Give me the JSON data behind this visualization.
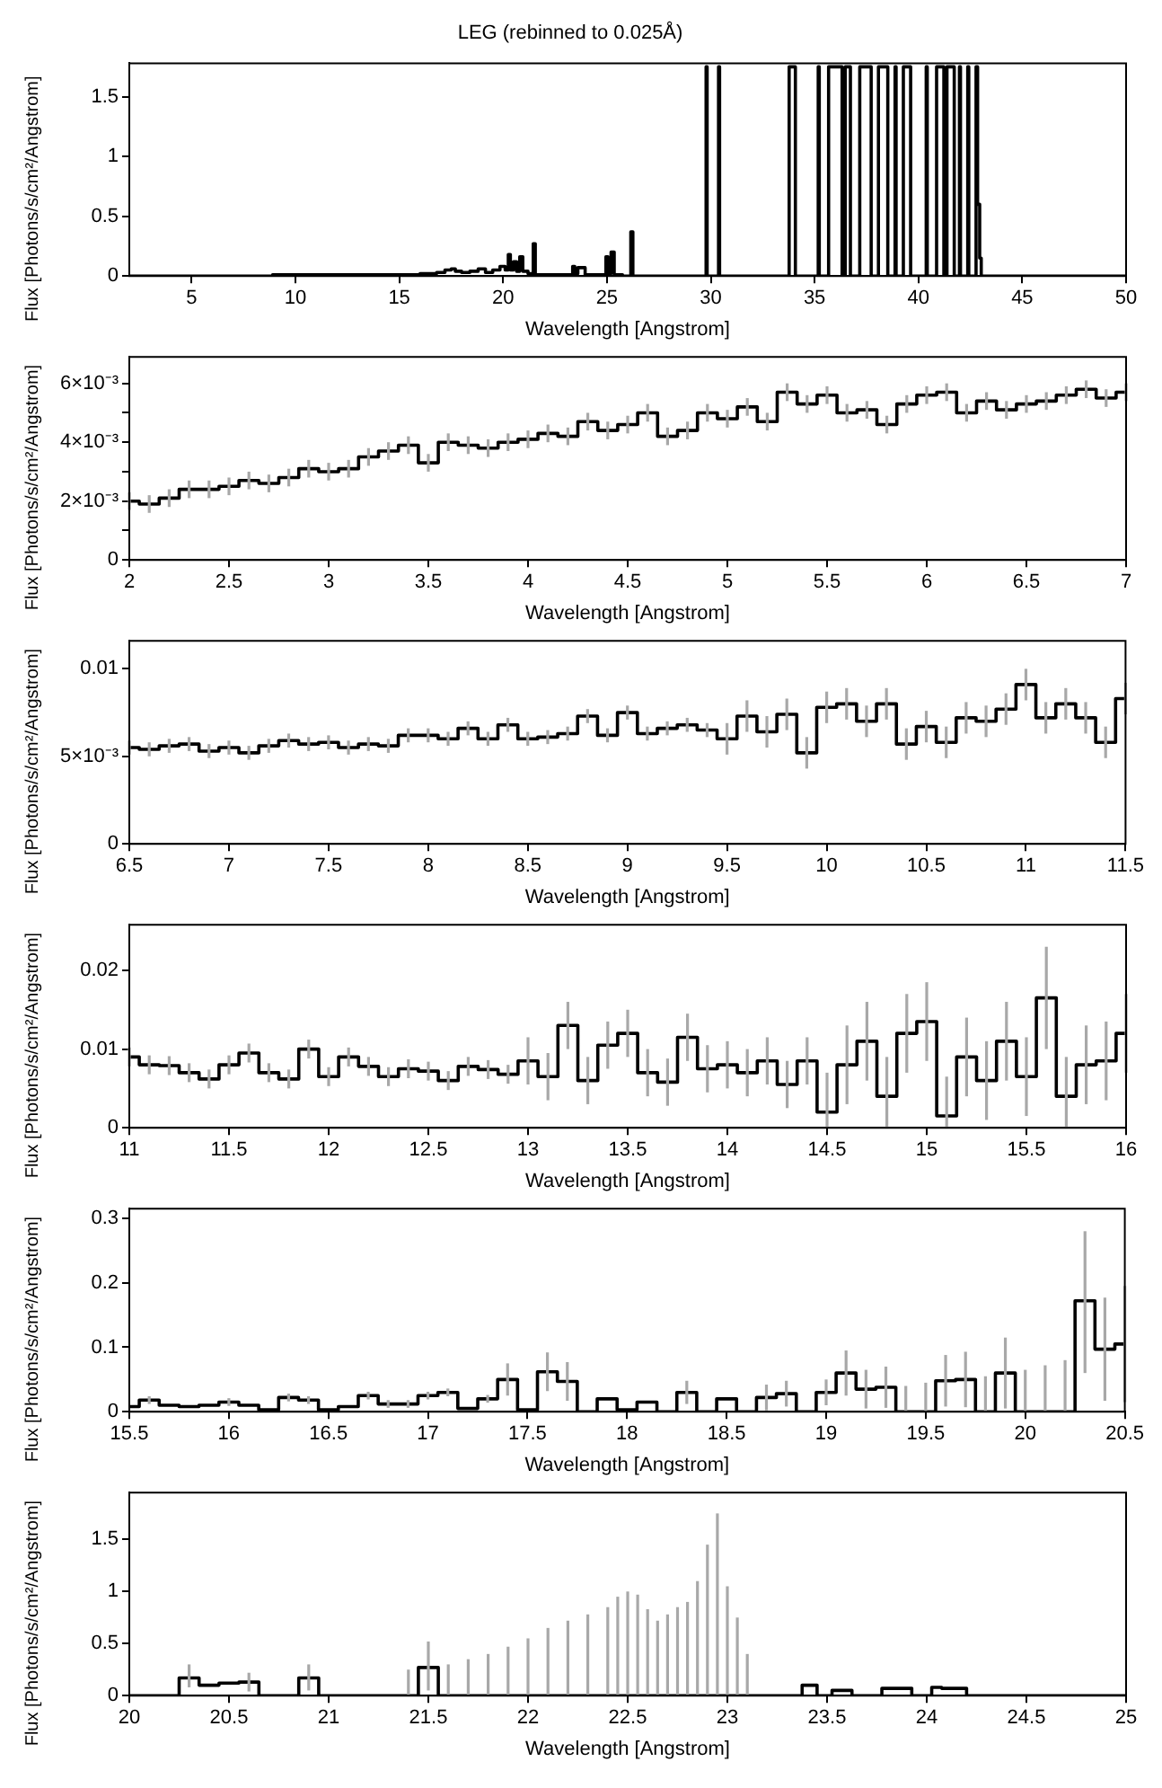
{
  "chart_data": [
    {
      "type": "step",
      "title": "LEG (rebinned to 0.025Å)",
      "xlabel": "Wavelength [Angstrom]",
      "ylabel": "Flux [Photons/s/cm²/Angstrom]",
      "color": "#000000",
      "xlim": [
        2,
        50
      ],
      "ylim": [
        0,
        1.78
      ],
      "xticks": [
        5,
        10,
        15,
        20,
        25,
        30,
        35,
        40,
        45,
        50
      ],
      "yticks": [
        0,
        0.5,
        1,
        1.5
      ],
      "x": [
        2,
        15.8,
        16.2,
        16.6,
        17.0,
        17.4,
        17.6,
        17.8,
        18.2,
        18.6,
        19.0,
        19.3,
        19.7,
        20.0,
        20.2,
        20.3,
        20.4,
        20.6,
        20.7,
        20.9,
        21.0,
        21.4,
        21.5,
        21.6,
        23.3,
        23.4,
        23.5,
        23.7,
        23.9,
        24.0,
        24.9,
        25.0,
        25.1,
        25.3,
        25.4,
        26.1,
        26.2,
        26.3,
        29.75,
        29.8,
        29.85,
        30.35,
        30.4,
        30.45,
        33.75,
        33.8,
        34.05,
        34.1,
        35.15,
        35.2,
        35.25,
        35.65,
        35.7,
        36.3,
        36.35,
        36.45,
        36.5,
        36.7,
        36.75,
        37.15,
        37.2,
        37.7,
        37.75,
        38.05,
        38.1,
        38.5,
        38.55,
        38.85,
        38.9,
        38.95,
        39.25,
        39.3,
        39.6,
        39.65,
        40.35,
        40.4,
        40.45,
        40.85,
        40.9,
        41.2,
        41.25,
        41.35,
        41.4,
        41.7,
        41.75,
        41.95,
        42.0,
        42.05,
        42.35,
        42.4,
        42.45,
        42.75,
        42.8,
        42.9,
        43.0,
        43.05,
        50
      ],
      "values": [
        0,
        0.01,
        0.02,
        0.02,
        0.03,
        0.05,
        0.06,
        0.04,
        0.03,
        0.04,
        0.06,
        0.03,
        0.05,
        0.08,
        0.05,
        0.18,
        0.05,
        0.12,
        0.04,
        0.16,
        0.04,
        0.02,
        0.27,
        0.01,
        0.01,
        0.08,
        0.02,
        0.07,
        0.07,
        0.01,
        0.01,
        0.16,
        0.02,
        0.2,
        0.01,
        0,
        0.37,
        0,
        0,
        1.75,
        0,
        0,
        1.75,
        0,
        0,
        1.75,
        1.75,
        0,
        0,
        1.75,
        0,
        0,
        1.75,
        1.75,
        0,
        0,
        1.75,
        1.75,
        0,
        0,
        1.75,
        1.75,
        0,
        0,
        1.75,
        1.75,
        0,
        0,
        1.75,
        0,
        0,
        1.75,
        1.75,
        0,
        0,
        1.75,
        0,
        0,
        1.75,
        1.75,
        0,
        0,
        1.75,
        1.75,
        0,
        0,
        1.75,
        0,
        0,
        1.75,
        0,
        0,
        1.75,
        0.6,
        0.15,
        0,
        0
      ]
    },
    {
      "type": "step",
      "xlabel": "Wavelength [Angstrom]",
      "ylabel": "Flux [Photons/s/cm²/Angstrom]",
      "color": "#000000",
      "xlim": [
        2,
        7
      ],
      "ylim": [
        0,
        0.0069
      ],
      "xticks": [
        2,
        2.5,
        3,
        3.5,
        4,
        4.5,
        5,
        5.5,
        6,
        6.5,
        7
      ],
      "yticks": [
        0,
        {
          "value": 0.001,
          "label": null
        },
        {
          "value": 0.002,
          "label": "2×10⁻³"
        },
        {
          "value": 0.003,
          "label": null
        },
        {
          "value": 0.004,
          "label": "4×10⁻³"
        },
        {
          "value": 0.005,
          "label": null
        },
        {
          "value": 0.006,
          "label": "6×10⁻³"
        }
      ],
      "x": [
        2,
        2.1,
        2.2,
        2.3,
        2.4,
        2.5,
        2.6,
        2.7,
        2.8,
        2.9,
        3,
        3.1,
        3.2,
        3.3,
        3.4,
        3.5,
        3.6,
        3.7,
        3.8,
        3.9,
        4,
        4.1,
        4.2,
        4.3,
        4.4,
        4.5,
        4.6,
        4.7,
        4.8,
        4.9,
        5,
        5.1,
        5.2,
        5.3,
        5.4,
        5.5,
        5.6,
        5.7,
        5.8,
        5.9,
        6,
        6.1,
        6.2,
        6.3,
        6.4,
        6.5,
        6.6,
        6.7,
        6.8,
        6.9,
        7
      ],
      "values": [
        0.002,
        0.0019,
        0.0021,
        0.0024,
        0.0024,
        0.0025,
        0.0027,
        0.0026,
        0.0028,
        0.0031,
        0.003,
        0.0031,
        0.0035,
        0.0037,
        0.0039,
        0.0033,
        0.004,
        0.0039,
        0.0038,
        0.004,
        0.0041,
        0.0043,
        0.0042,
        0.0047,
        0.0044,
        0.0046,
        0.005,
        0.0042,
        0.0044,
        0.005,
        0.0048,
        0.0052,
        0.0047,
        0.0057,
        0.0053,
        0.0056,
        0.005,
        0.0051,
        0.0046,
        0.0053,
        0.0056,
        0.0057,
        0.005,
        0.0054,
        0.0051,
        0.0053,
        0.0054,
        0.0056,
        0.0058,
        0.0055,
        0.0057
      ],
      "errors": [
        0.0003,
        0.0003,
        0.0003,
        0.0003,
        0.0003,
        0.0003,
        0.0003,
        0.0003,
        0.0003,
        0.0003,
        0.0003,
        0.0003,
        0.0003,
        0.0003,
        0.0003,
        0.0003,
        0.0003,
        0.0003,
        0.0003,
        0.0003,
        0.0003,
        0.0003,
        0.0003,
        0.0003,
        0.0003,
        0.0003,
        0.0003,
        0.0003,
        0.0003,
        0.0003,
        0.0003,
        0.0003,
        0.0003,
        0.0003,
        0.0003,
        0.0003,
        0.0003,
        0.0003,
        0.0003,
        0.0003,
        0.0003,
        0.0003,
        0.0003,
        0.0003,
        0.0003,
        0.0003,
        0.0003,
        0.0003,
        0.0003,
        0.0003,
        0.0003
      ]
    },
    {
      "type": "step",
      "xlabel": "Wavelength [Angstrom]",
      "ylabel": "Flux [Photons/s/cm²/Angstrom]",
      "color": "#000000",
      "xlim": [
        6.5,
        11.5
      ],
      "ylim": [
        0,
        0.0116
      ],
      "xticks": [
        6.5,
        7,
        7.5,
        8,
        8.5,
        9,
        9.5,
        10,
        10.5,
        11,
        11.5
      ],
      "yticks": [
        0,
        {
          "value": 0.005,
          "label": "5×10⁻³"
        },
        0.01
      ],
      "x": [
        6.5,
        6.6,
        6.7,
        6.8,
        6.9,
        7,
        7.1,
        7.2,
        7.3,
        7.4,
        7.5,
        7.6,
        7.7,
        7.8,
        7.9,
        8,
        8.1,
        8.2,
        8.3,
        8.4,
        8.5,
        8.6,
        8.7,
        8.8,
        8.9,
        9,
        9.1,
        9.2,
        9.3,
        9.4,
        9.5,
        9.6,
        9.7,
        9.8,
        9.9,
        10,
        10.1,
        10.2,
        10.3,
        10.4,
        10.5,
        10.6,
        10.7,
        10.8,
        10.9,
        11,
        11.1,
        11.2,
        11.3,
        11.4,
        11.5
      ],
      "values": [
        0.0055,
        0.0054,
        0.0056,
        0.0057,
        0.0053,
        0.0055,
        0.0052,
        0.0056,
        0.0059,
        0.0057,
        0.0058,
        0.0055,
        0.0057,
        0.0056,
        0.0062,
        0.0062,
        0.006,
        0.0066,
        0.006,
        0.0068,
        0.006,
        0.0061,
        0.0063,
        0.0073,
        0.0062,
        0.0075,
        0.0063,
        0.0066,
        0.0068,
        0.0065,
        0.006,
        0.0073,
        0.0064,
        0.0074,
        0.0052,
        0.0078,
        0.008,
        0.007,
        0.008,
        0.0057,
        0.0067,
        0.0058,
        0.0072,
        0.007,
        0.0077,
        0.0091,
        0.0072,
        0.008,
        0.0072,
        0.0058,
        0.0083
      ],
      "errors": [
        0.0004,
        0.0004,
        0.0004,
        0.0004,
        0.0004,
        0.0004,
        0.0004,
        0.0004,
        0.0004,
        0.0004,
        0.0004,
        0.0004,
        0.0004,
        0.0004,
        0.0004,
        0.0004,
        0.0004,
        0.0004,
        0.0004,
        0.0004,
        0.0004,
        0.0004,
        0.0004,
        0.0004,
        0.0004,
        0.0004,
        0.0004,
        0.0004,
        0.0004,
        0.0004,
        0.0009,
        0.0009,
        0.0009,
        0.0009,
        0.0009,
        0.0009,
        0.0009,
        0.0009,
        0.0009,
        0.0009,
        0.0009,
        0.0009,
        0.0009,
        0.0009,
        0.0009,
        0.0009,
        0.0009,
        0.0009,
        0.0009,
        0.0009,
        0.0009
      ]
    },
    {
      "type": "step",
      "xlabel": "Wavelength [Angstrom]",
      "ylabel": "Flux [Photons/s/cm²/Angstrom]",
      "color": "#000000",
      "xlim": [
        11,
        16
      ],
      "ylim": [
        0,
        0.0258
      ],
      "xticks": [
        11,
        11.5,
        12,
        12.5,
        13,
        13.5,
        14,
        14.5,
        15,
        15.5,
        16
      ],
      "yticks": [
        0,
        0.01,
        0.02
      ],
      "x": [
        11,
        11.1,
        11.2,
        11.3,
        11.4,
        11.5,
        11.6,
        11.7,
        11.8,
        11.9,
        12,
        12.1,
        12.2,
        12.3,
        12.4,
        12.5,
        12.6,
        12.7,
        12.8,
        12.9,
        13,
        13.1,
        13.2,
        13.3,
        13.4,
        13.5,
        13.6,
        13.7,
        13.8,
        13.9,
        14,
        14.1,
        14.2,
        14.3,
        14.4,
        14.5,
        14.6,
        14.7,
        14.8,
        14.9,
        15,
        15.1,
        15.2,
        15.3,
        15.4,
        15.5,
        15.6,
        15.7,
        15.8,
        15.9,
        16
      ],
      "values": [
        0.009,
        0.008,
        0.0079,
        0.007,
        0.0062,
        0.008,
        0.0095,
        0.007,
        0.0062,
        0.01,
        0.0065,
        0.009,
        0.0078,
        0.0065,
        0.0075,
        0.0072,
        0.006,
        0.0078,
        0.0074,
        0.0068,
        0.0085,
        0.0065,
        0.013,
        0.006,
        0.0105,
        0.012,
        0.007,
        0.0058,
        0.0115,
        0.0075,
        0.008,
        0.007,
        0.0085,
        0.0055,
        0.0085,
        0.002,
        0.008,
        0.011,
        0.004,
        0.012,
        0.0135,
        0.0015,
        0.009,
        0.006,
        0.011,
        0.0065,
        0.0165,
        0.004,
        0.008,
        0.0085,
        0.012
      ],
      "errors": [
        0.0012,
        0.0012,
        0.0012,
        0.0012,
        0.0012,
        0.0012,
        0.0012,
        0.0012,
        0.0012,
        0.0012,
        0.0012,
        0.0012,
        0.0012,
        0.0012,
        0.0012,
        0.0012,
        0.0012,
        0.0012,
        0.0012,
        0.0012,
        0.003,
        0.003,
        0.003,
        0.003,
        0.003,
        0.003,
        0.003,
        0.003,
        0.003,
        0.003,
        0.003,
        0.003,
        0.003,
        0.003,
        0.003,
        [
          0,
          0.007
        ],
        0.005,
        0.005,
        [
          0,
          0.009
        ],
        0.005,
        0.005,
        [
          0,
          0.0065
        ],
        0.005,
        0.005,
        0.005,
        0.005,
        0.0065,
        [
          0,
          0.009
        ],
        0.005,
        0.005,
        0.005
      ]
    },
    {
      "type": "step",
      "xlabel": "Wavelength [Angstrom]",
      "ylabel": "Flux [Photons/s/cm²/Angstrom]",
      "color": "#000000",
      "xlim": [
        15.5,
        20.5
      ],
      "ylim": [
        0,
        0.315
      ],
      "xticks": [
        15.5,
        16,
        16.5,
        17,
        17.5,
        18,
        18.5,
        19,
        19.5,
        20,
        20.5
      ],
      "yticks": [
        0,
        0.1,
        0.2,
        0.3
      ],
      "x": [
        15.5,
        15.6,
        15.7,
        15.8,
        15.9,
        16,
        16.1,
        16.2,
        16.3,
        16.4,
        16.5,
        16.6,
        16.7,
        16.8,
        16.9,
        17,
        17.1,
        17.2,
        17.3,
        17.4,
        17.5,
        17.6,
        17.7,
        17.8,
        17.9,
        18,
        18.1,
        18.2,
        18.3,
        18.4,
        18.5,
        18.6,
        18.7,
        18.8,
        18.9,
        19,
        19.1,
        19.2,
        19.3,
        19.4,
        19.5,
        19.6,
        19.7,
        19.8,
        19.9,
        20,
        20.1,
        20.2,
        20.3,
        20.4,
        20.5
      ],
      "values": [
        0.008,
        0.018,
        0.01,
        0.008,
        0.01,
        0.015,
        0.01,
        0.003,
        0.022,
        0.018,
        0.003,
        0.008,
        0.025,
        0.012,
        0.012,
        0.025,
        0.03,
        0.005,
        0.02,
        0.05,
        0.003,
        0.062,
        0.047,
        0,
        0.02,
        0.003,
        0.015,
        0,
        0.03,
        0,
        0.02,
        0,
        0.022,
        0.028,
        0,
        0.03,
        0.06,
        0.035,
        0.038,
        0,
        0,
        0.048,
        0.05,
        0,
        0.06,
        0,
        0,
        0,
        0.172,
        0.097,
        0.105
      ],
      "errors": [
        null,
        0.006,
        null,
        null,
        null,
        0.006,
        null,
        null,
        0.006,
        0.006,
        null,
        null,
        0.006,
        0.006,
        0.006,
        0.006,
        0.006,
        null,
        0.006,
        0.025,
        null,
        0.03,
        0.03,
        null,
        null,
        null,
        null,
        null,
        0.018,
        null,
        null,
        null,
        0.02,
        0.02,
        null,
        0.02,
        0.035,
        0.03,
        0.032,
        [
          0,
          0.04
        ],
        [
          0,
          0.045
        ],
        0.04,
        0.043,
        [
          0,
          0.055
        ],
        0.055,
        [
          0,
          0.065
        ],
        [
          0,
          0.072
        ],
        [
          0,
          0.08
        ],
        [
          0.06,
          0.28
        ],
        0.08,
        0.09
      ]
    },
    {
      "type": "step",
      "xlabel": "Wavelength [Angstrom]",
      "ylabel": "Flux [Photons/s/cm²/Angstrom]",
      "color": "#000000",
      "xlim": [
        20,
        25
      ],
      "ylim": [
        0,
        1.95
      ],
      "xticks": [
        20,
        20.5,
        21,
        21.5,
        22,
        22.5,
        23,
        23.5,
        24,
        24.5,
        25
      ],
      "yticks": [
        0,
        0.5,
        1,
        1.5
      ],
      "x": [
        20,
        20.1,
        20.2,
        20.3,
        20.4,
        20.5,
        20.6,
        20.7,
        20.8,
        20.9,
        21,
        21.1,
        21.2,
        21.3,
        21.4,
        21.5,
        21.6,
        21.7,
        21.8,
        21.9,
        22,
        22.1,
        22.2,
        22.3,
        22.4,
        22.45,
        22.5,
        22.55,
        22.6,
        22.65,
        22.7,
        22.75,
        22.8,
        22.85,
        22.9,
        22.95,
        23,
        23.05,
        23.1,
        23.15,
        23.2,
        23.3,
        23.35,
        23.4,
        23.5,
        23.55,
        23.7,
        23.85,
        24,
        24.05,
        24.1,
        24.3,
        24.5,
        24.7,
        25
      ],
      "values": [
        0,
        0,
        0,
        0.17,
        0.1,
        0.12,
        0.13,
        0,
        0,
        0.17,
        0,
        0,
        0,
        0,
        0,
        0.27,
        0,
        0,
        0,
        0,
        0,
        0,
        0,
        0,
        0,
        0,
        0,
        0,
        0,
        0,
        0,
        0,
        0,
        0,
        0,
        0,
        0,
        0,
        0,
        0,
        0,
        0,
        0,
        0.1,
        0,
        0.05,
        0,
        0.07,
        0,
        0.08,
        0.07,
        0,
        0,
        0,
        0
      ],
      "errors": [
        null,
        null,
        null,
        [
          0.08,
          0.3
        ],
        null,
        null,
        [
          0.04,
          0.22
        ],
        null,
        null,
        [
          0.05,
          0.3
        ],
        null,
        null,
        null,
        null,
        [
          0,
          0.25
        ],
        [
          0.05,
          0.52
        ],
        [
          0,
          0.3
        ],
        [
          0,
          0.35
        ],
        [
          0,
          0.4
        ],
        [
          0,
          0.47
        ],
        [
          0,
          0.55
        ],
        [
          0,
          0.65
        ],
        [
          0,
          0.72
        ],
        [
          0,
          0.78
        ],
        [
          0,
          0.85
        ],
        [
          0,
          0.95
        ],
        [
          0,
          1.0
        ],
        [
          0,
          0.97
        ],
        [
          0,
          0.83
        ],
        [
          0,
          0.72
        ],
        [
          0,
          0.78
        ],
        [
          0,
          0.85
        ],
        [
          0,
          0.9
        ],
        [
          0,
          1.1
        ],
        [
          0,
          1.45
        ],
        [
          0,
          1.75
        ],
        [
          0,
          1.05
        ],
        [
          0,
          0.75
        ],
        [
          0,
          0.4
        ],
        null,
        null,
        null,
        null,
        null,
        null,
        null,
        null,
        null,
        null,
        null,
        null,
        null,
        null,
        null,
        null
      ]
    }
  ]
}
